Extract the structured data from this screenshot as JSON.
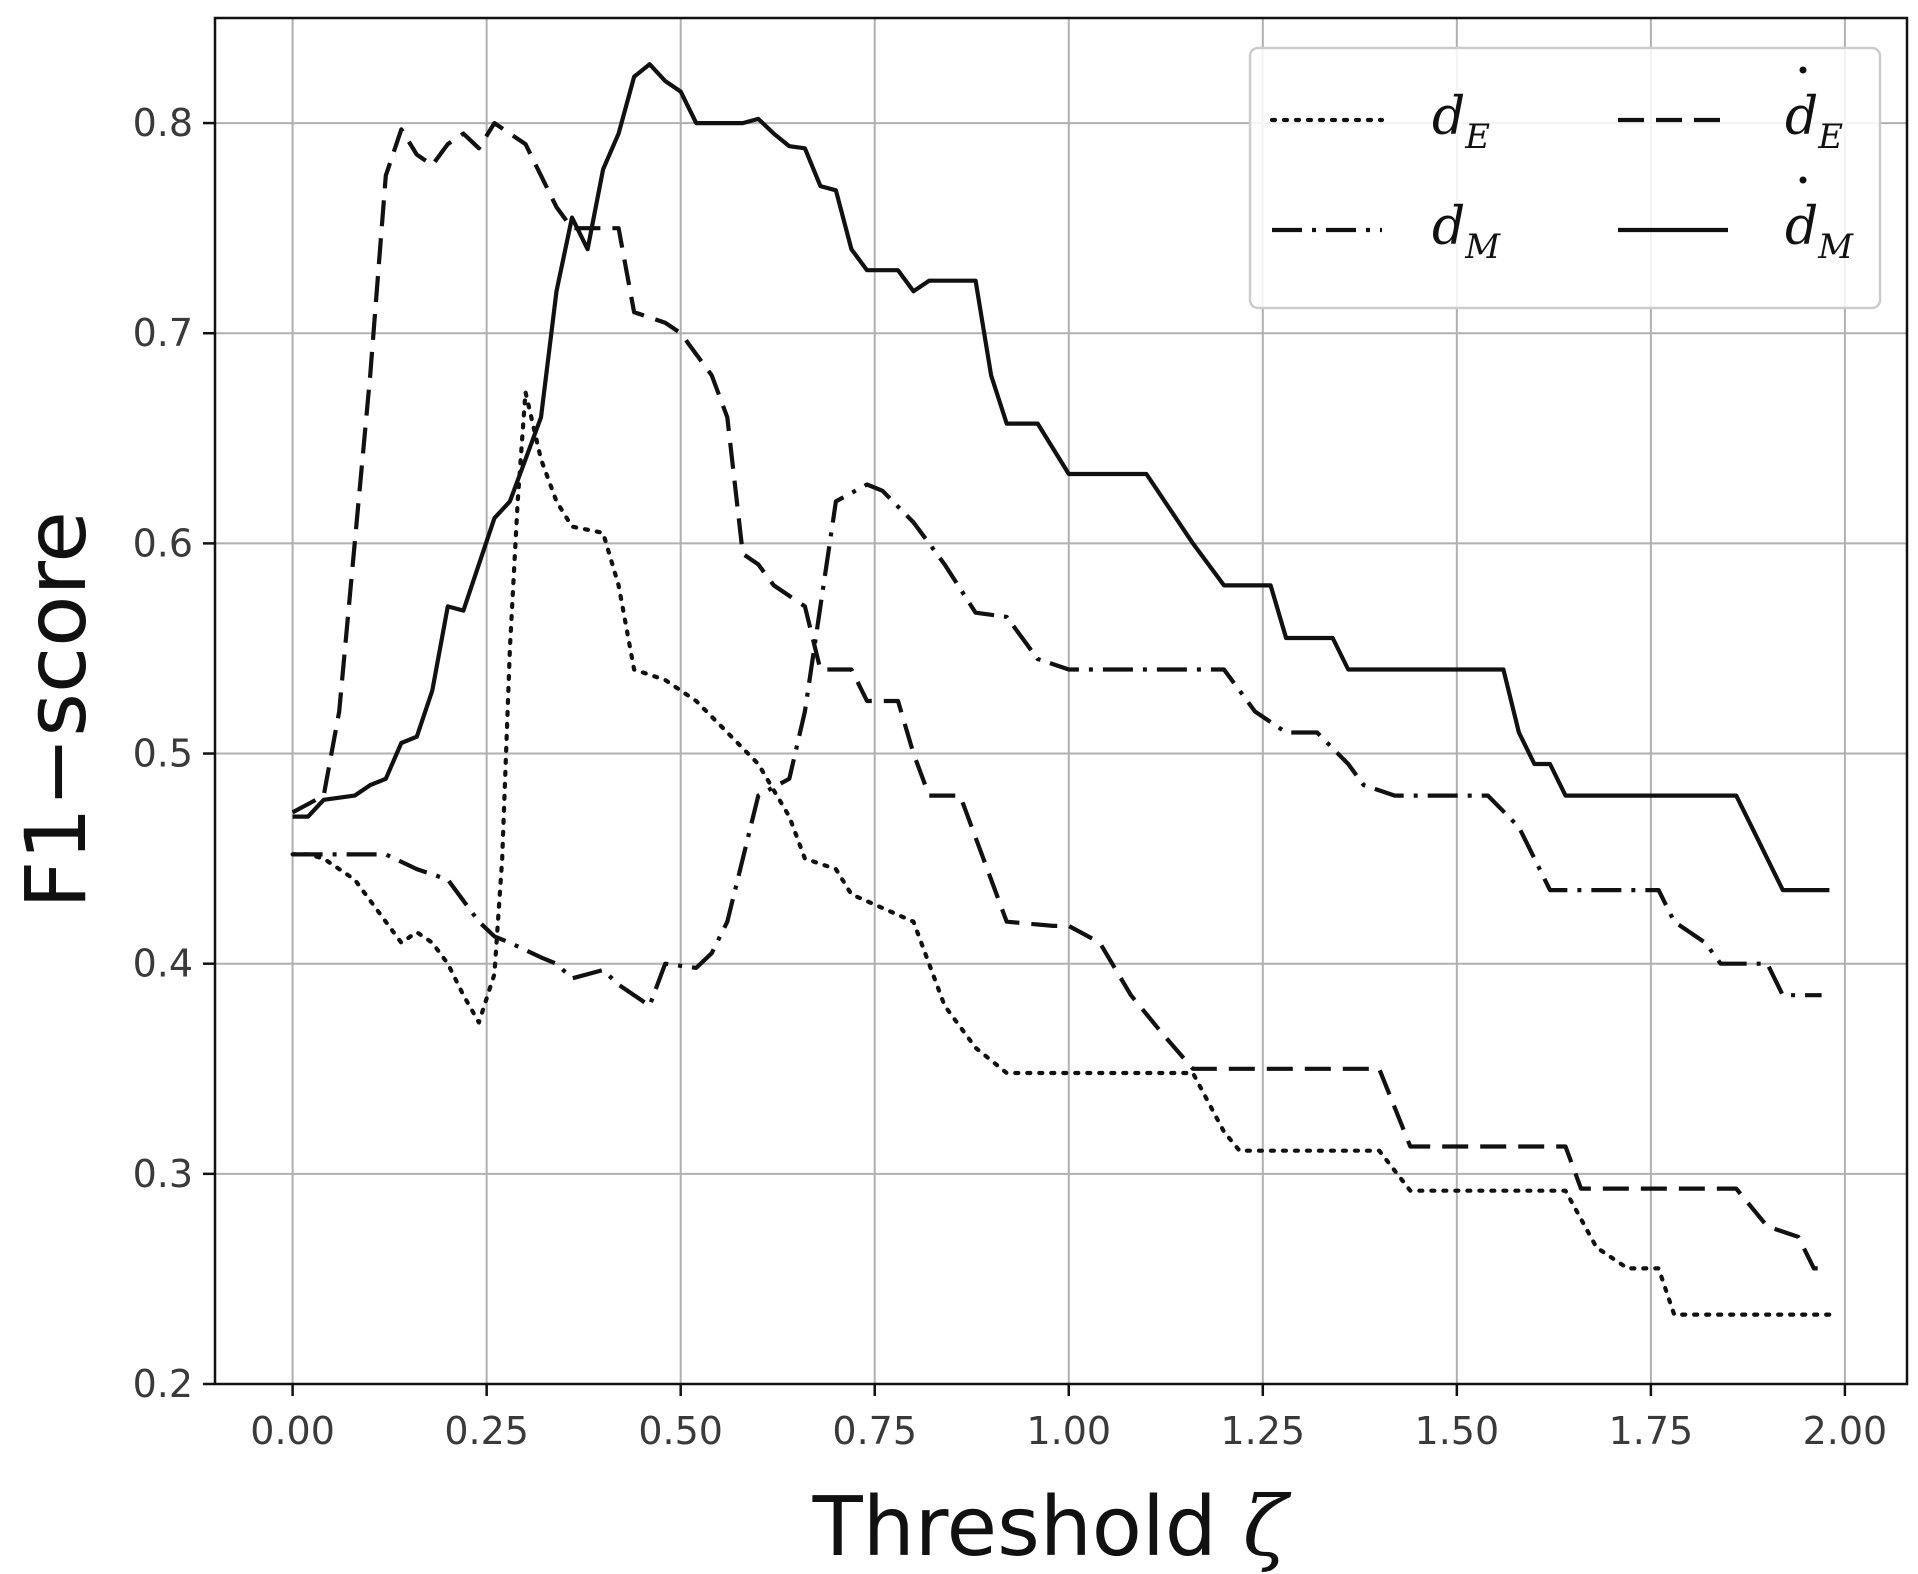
{
  "chart_data": {
    "type": "line",
    "xlabel": "Threshold",
    "xlabel_symbol": "ζ",
    "ylabel": "F1−score",
    "xlim": [
      -0.1,
      2.08
    ],
    "ylim": [
      0.2,
      0.85
    ],
    "xticks": [
      0.0,
      0.25,
      0.5,
      0.75,
      1.0,
      1.25,
      1.5,
      1.75,
      2.0
    ],
    "xtick_labels": [
      "0.00",
      "0.25",
      "0.50",
      "0.75",
      "1.00",
      "1.25",
      "1.50",
      "1.75",
      "2.00"
    ],
    "yticks": [
      0.2,
      0.3,
      0.4,
      0.5,
      0.6,
      0.7,
      0.8
    ],
    "ytick_labels": [
      "0.2",
      "0.3",
      "0.4",
      "0.5",
      "0.6",
      "0.7",
      "0.8"
    ],
    "grid": true,
    "legend_position": "top-right",
    "legend_columns": 2,
    "series": [
      {
        "name": "d_E",
        "label_main": "d",
        "label_sub": "E",
        "dotted_accent": false,
        "style": "dotted",
        "points": [
          [
            0.0,
            0.452
          ],
          [
            0.02,
            0.452
          ],
          [
            0.04,
            0.45
          ],
          [
            0.06,
            0.445
          ],
          [
            0.08,
            0.44
          ],
          [
            0.1,
            0.43
          ],
          [
            0.12,
            0.42
          ],
          [
            0.14,
            0.41
          ],
          [
            0.16,
            0.415
          ],
          [
            0.18,
            0.41
          ],
          [
            0.2,
            0.4
          ],
          [
            0.22,
            0.385
          ],
          [
            0.24,
            0.372
          ],
          [
            0.26,
            0.395
          ],
          [
            0.27,
            0.45
          ],
          [
            0.28,
            0.55
          ],
          [
            0.29,
            0.62
          ],
          [
            0.3,
            0.672
          ],
          [
            0.32,
            0.64
          ],
          [
            0.34,
            0.62
          ],
          [
            0.36,
            0.608
          ],
          [
            0.4,
            0.605
          ],
          [
            0.42,
            0.58
          ],
          [
            0.44,
            0.54
          ],
          [
            0.48,
            0.535
          ],
          [
            0.52,
            0.525
          ],
          [
            0.56,
            0.51
          ],
          [
            0.6,
            0.495
          ],
          [
            0.64,
            0.47
          ],
          [
            0.66,
            0.45
          ],
          [
            0.7,
            0.445
          ],
          [
            0.72,
            0.433
          ],
          [
            0.8,
            0.42
          ],
          [
            0.84,
            0.38
          ],
          [
            0.88,
            0.36
          ],
          [
            0.92,
            0.348
          ],
          [
            1.16,
            0.348
          ],
          [
            1.2,
            0.32
          ],
          [
            1.22,
            0.311
          ],
          [
            1.4,
            0.311
          ],
          [
            1.44,
            0.292
          ],
          [
            1.64,
            0.292
          ],
          [
            1.68,
            0.265
          ],
          [
            1.72,
            0.255
          ],
          [
            1.76,
            0.255
          ],
          [
            1.78,
            0.233
          ],
          [
            1.98,
            0.233
          ]
        ]
      },
      {
        "name": "d_M",
        "label_main": "d",
        "label_sub": "M",
        "dotted_accent": false,
        "style": "dashdot",
        "points": [
          [
            0.0,
            0.452
          ],
          [
            0.12,
            0.452
          ],
          [
            0.16,
            0.445
          ],
          [
            0.2,
            0.44
          ],
          [
            0.24,
            0.42
          ],
          [
            0.26,
            0.413
          ],
          [
            0.28,
            0.41
          ],
          [
            0.32,
            0.403
          ],
          [
            0.34,
            0.4
          ],
          [
            0.36,
            0.393
          ],
          [
            0.4,
            0.397
          ],
          [
            0.42,
            0.39
          ],
          [
            0.44,
            0.385
          ],
          [
            0.46,
            0.38
          ],
          [
            0.48,
            0.4
          ],
          [
            0.52,
            0.398
          ],
          [
            0.54,
            0.405
          ],
          [
            0.56,
            0.42
          ],
          [
            0.6,
            0.48
          ],
          [
            0.64,
            0.488
          ],
          [
            0.66,
            0.52
          ],
          [
            0.68,
            0.57
          ],
          [
            0.7,
            0.62
          ],
          [
            0.74,
            0.628
          ],
          [
            0.76,
            0.625
          ],
          [
            0.8,
            0.61
          ],
          [
            0.82,
            0.6
          ],
          [
            0.84,
            0.59
          ],
          [
            0.88,
            0.567
          ],
          [
            0.92,
            0.565
          ],
          [
            0.96,
            0.545
          ],
          [
            1.0,
            0.54
          ],
          [
            1.2,
            0.54
          ],
          [
            1.24,
            0.52
          ],
          [
            1.28,
            0.51
          ],
          [
            1.32,
            0.51
          ],
          [
            1.36,
            0.495
          ],
          [
            1.38,
            0.485
          ],
          [
            1.42,
            0.48
          ],
          [
            1.54,
            0.48
          ],
          [
            1.58,
            0.465
          ],
          [
            1.62,
            0.435
          ],
          [
            1.76,
            0.435
          ],
          [
            1.78,
            0.42
          ],
          [
            1.82,
            0.41
          ],
          [
            1.84,
            0.4
          ],
          [
            1.9,
            0.4
          ],
          [
            1.92,
            0.385
          ],
          [
            1.97,
            0.385
          ]
        ]
      },
      {
        "name": "ḋ_E",
        "label_main": "d",
        "label_sub": "E",
        "dotted_accent": true,
        "style": "dashed",
        "points": [
          [
            0.0,
            0.472
          ],
          [
            0.04,
            0.48
          ],
          [
            0.06,
            0.52
          ],
          [
            0.08,
            0.6
          ],
          [
            0.1,
            0.68
          ],
          [
            0.12,
            0.775
          ],
          [
            0.14,
            0.797
          ],
          [
            0.16,
            0.785
          ],
          [
            0.18,
            0.78
          ],
          [
            0.2,
            0.79
          ],
          [
            0.22,
            0.795
          ],
          [
            0.24,
            0.788
          ],
          [
            0.26,
            0.8
          ],
          [
            0.3,
            0.79
          ],
          [
            0.34,
            0.76
          ],
          [
            0.36,
            0.75
          ],
          [
            0.42,
            0.75
          ],
          [
            0.44,
            0.71
          ],
          [
            0.48,
            0.705
          ],
          [
            0.5,
            0.7
          ],
          [
            0.52,
            0.69
          ],
          [
            0.54,
            0.68
          ],
          [
            0.56,
            0.66
          ],
          [
            0.58,
            0.595
          ],
          [
            0.6,
            0.59
          ],
          [
            0.62,
            0.58
          ],
          [
            0.66,
            0.57
          ],
          [
            0.68,
            0.54
          ],
          [
            0.72,
            0.54
          ],
          [
            0.74,
            0.525
          ],
          [
            0.78,
            0.525
          ],
          [
            0.8,
            0.5
          ],
          [
            0.82,
            0.48
          ],
          [
            0.86,
            0.48
          ],
          [
            0.88,
            0.46
          ],
          [
            0.92,
            0.42
          ],
          [
            0.98,
            0.418
          ],
          [
            1.0,
            0.418
          ],
          [
            1.04,
            0.41
          ],
          [
            1.08,
            0.385
          ],
          [
            1.12,
            0.367
          ],
          [
            1.16,
            0.35
          ],
          [
            1.4,
            0.35
          ],
          [
            1.44,
            0.313
          ],
          [
            1.64,
            0.313
          ],
          [
            1.66,
            0.293
          ],
          [
            1.86,
            0.293
          ],
          [
            1.9,
            0.275
          ],
          [
            1.94,
            0.27
          ],
          [
            1.96,
            0.255
          ],
          [
            1.98,
            0.255
          ]
        ]
      },
      {
        "name": "ḋ_M",
        "label_main": "d",
        "label_sub": "M",
        "dotted_accent": true,
        "style": "solid",
        "points": [
          [
            0.0,
            0.47
          ],
          [
            0.02,
            0.47
          ],
          [
            0.04,
            0.478
          ],
          [
            0.08,
            0.48
          ],
          [
            0.1,
            0.485
          ],
          [
            0.12,
            0.488
          ],
          [
            0.14,
            0.505
          ],
          [
            0.16,
            0.508
          ],
          [
            0.18,
            0.53
          ],
          [
            0.2,
            0.57
          ],
          [
            0.22,
            0.568
          ],
          [
            0.26,
            0.612
          ],
          [
            0.28,
            0.62
          ],
          [
            0.3,
            0.64
          ],
          [
            0.32,
            0.66
          ],
          [
            0.34,
            0.72
          ],
          [
            0.36,
            0.755
          ],
          [
            0.38,
            0.74
          ],
          [
            0.4,
            0.778
          ],
          [
            0.42,
            0.795
          ],
          [
            0.44,
            0.822
          ],
          [
            0.46,
            0.828
          ],
          [
            0.48,
            0.82
          ],
          [
            0.5,
            0.815
          ],
          [
            0.52,
            0.8
          ],
          [
            0.58,
            0.8
          ],
          [
            0.6,
            0.802
          ],
          [
            0.62,
            0.795
          ],
          [
            0.64,
            0.789
          ],
          [
            0.66,
            0.788
          ],
          [
            0.68,
            0.77
          ],
          [
            0.7,
            0.768
          ],
          [
            0.72,
            0.74
          ],
          [
            0.74,
            0.73
          ],
          [
            0.78,
            0.73
          ],
          [
            0.8,
            0.72
          ],
          [
            0.82,
            0.725
          ],
          [
            0.88,
            0.725
          ],
          [
            0.9,
            0.68
          ],
          [
            0.92,
            0.657
          ],
          [
            0.96,
            0.657
          ],
          [
            1.0,
            0.633
          ],
          [
            1.1,
            0.633
          ],
          [
            1.16,
            0.6
          ],
          [
            1.2,
            0.58
          ],
          [
            1.26,
            0.58
          ],
          [
            1.28,
            0.555
          ],
          [
            1.34,
            0.555
          ],
          [
            1.36,
            0.54
          ],
          [
            1.56,
            0.54
          ],
          [
            1.58,
            0.51
          ],
          [
            1.6,
            0.495
          ],
          [
            1.62,
            0.495
          ],
          [
            1.64,
            0.48
          ],
          [
            1.86,
            0.48
          ],
          [
            1.88,
            0.465
          ],
          [
            1.92,
            0.435
          ],
          [
            1.98,
            0.435
          ]
        ]
      }
    ]
  }
}
